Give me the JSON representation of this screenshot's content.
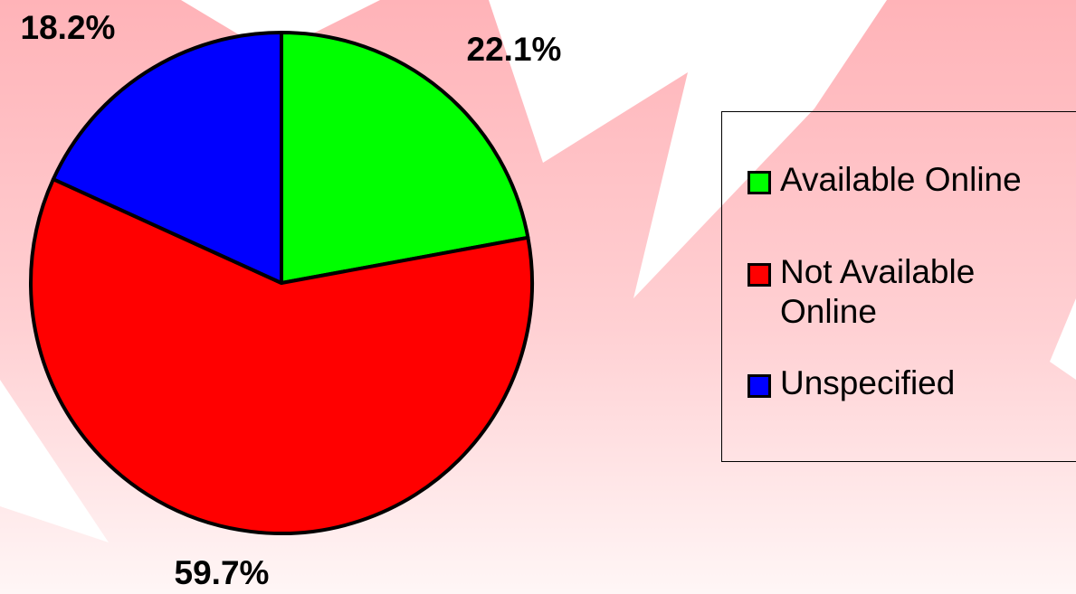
{
  "chart_data": {
    "type": "pie",
    "categories": [
      "Available Online",
      "Not Available Online",
      "Unspecified"
    ],
    "values": [
      22.1,
      59.7,
      18.2
    ],
    "value_labels": [
      "22.1%",
      "59.7%",
      "18.2%"
    ],
    "colors": [
      "#00ff00",
      "#ff0000",
      "#0000ff"
    ]
  }
}
